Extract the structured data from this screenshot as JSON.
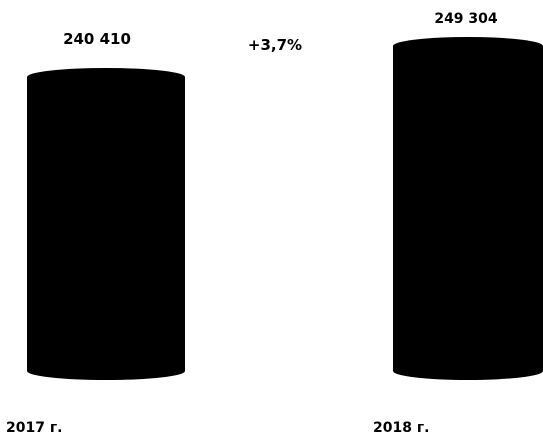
{
  "chart_data": {
    "type": "bar",
    "categories": [
      "2017 г.",
      "2018 г."
    ],
    "values": [
      240410,
      249304
    ],
    "value_labels": [
      "240 410",
      "249 304"
    ],
    "change_label": "+3,7%",
    "bar_shape": "cylinder",
    "bar_color": "#000000",
    "title": "",
    "xlabel": "",
    "ylabel": "",
    "grid": false,
    "legend": "none"
  }
}
